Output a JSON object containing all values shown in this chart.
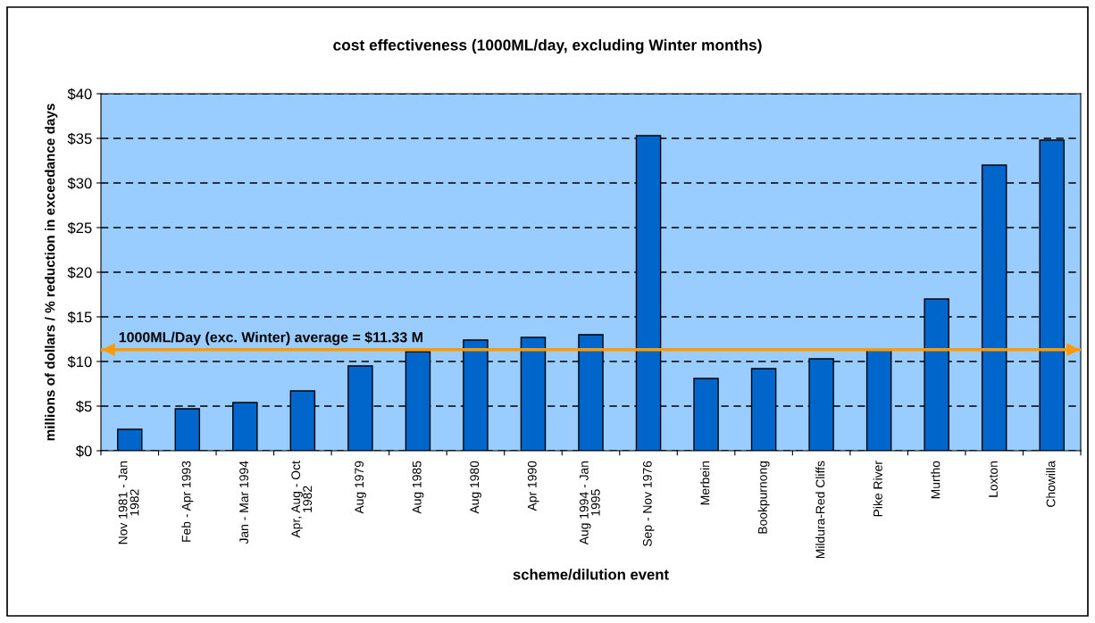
{
  "chart_data": {
    "type": "bar",
    "title": "cost effectiveness (1000ML/day, excluding Winter months)",
    "xlabel": "scheme/dilution event",
    "ylabel": "millions of dollars / % reduction in exceedance days",
    "categories": [
      "Nov 1981 - Jan\n1982",
      "Feb - Apr 1993",
      "Jan - Mar 1994",
      "Apr, Aug - Oct\n1982",
      "Aug 1979",
      "Aug 1985",
      "Aug 1980",
      "Apr 1990",
      "Aug 1994 - Jan\n1995",
      "Sep - Nov 1976",
      "Merbein",
      "Bookpurnong",
      "Mildura-Red Cliffs",
      "Pike River",
      "Murtho",
      "Loxton",
      "Chowilla"
    ],
    "values": [
      2.4,
      4.7,
      5.4,
      6.7,
      9.5,
      11.1,
      12.4,
      12.7,
      13.0,
      35.3,
      8.1,
      9.2,
      10.3,
      11.3,
      17.0,
      32.0,
      34.8
    ],
    "color": "#0066cc",
    "ylim": [
      0,
      40
    ],
    "yticks": [
      {
        "value": 0,
        "label": "$0"
      },
      {
        "value": 5,
        "label": "$5"
      },
      {
        "value": 10,
        "label": "$10"
      },
      {
        "value": 15,
        "label": "$15"
      },
      {
        "value": 20,
        "label": "$20"
      },
      {
        "value": 25,
        "label": "$25"
      },
      {
        "value": 30,
        "label": "$30"
      },
      {
        "value": 35,
        "label": "$35"
      },
      {
        "value": 40,
        "label": "$40"
      }
    ],
    "grid": "y",
    "ref_lines": [
      {
        "axis": "y",
        "value": 11.33,
        "label": "1000ML/Day (exc. Winter) average = $11.33 M",
        "color": "#ff9900"
      }
    ]
  }
}
